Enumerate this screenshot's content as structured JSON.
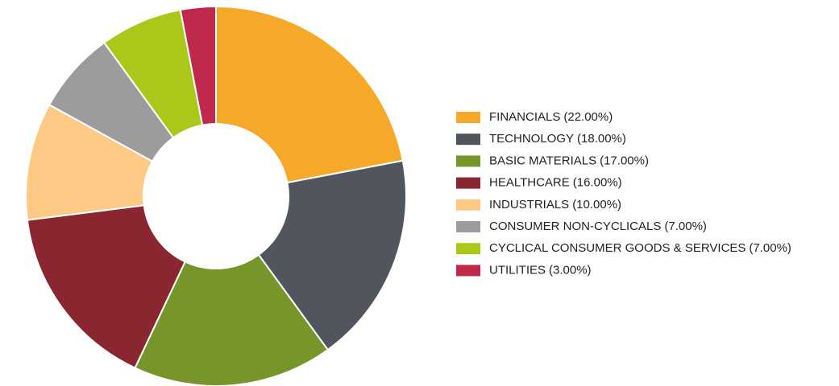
{
  "chart_data": {
    "type": "donut",
    "categories": [
      "FINANCIALS",
      "TECHNOLOGY",
      "BASIC MATERIALS",
      "HEALTHCARE",
      "INDUSTRIALS",
      "CONSUMER NON-CYCLICALS",
      "CYCLICAL CONSUMER GOODS & SERVICES",
      "UTILITIES"
    ],
    "values": [
      22,
      18,
      17,
      16,
      10,
      7,
      7,
      3
    ],
    "value_labels": [
      "(22.00%)",
      "(18.00%)",
      "(17.00%)",
      "(16.00%)",
      "(10.00%)",
      "(7.00%)",
      "(7.00%)",
      "(3.00%)"
    ],
    "colors": [
      "#f6a828",
      "#51555e",
      "#76962c",
      "#8a2630",
      "#fdc985",
      "#9c9c9c",
      "#abc81a",
      "#c0294b"
    ],
    "legend": "right"
  }
}
